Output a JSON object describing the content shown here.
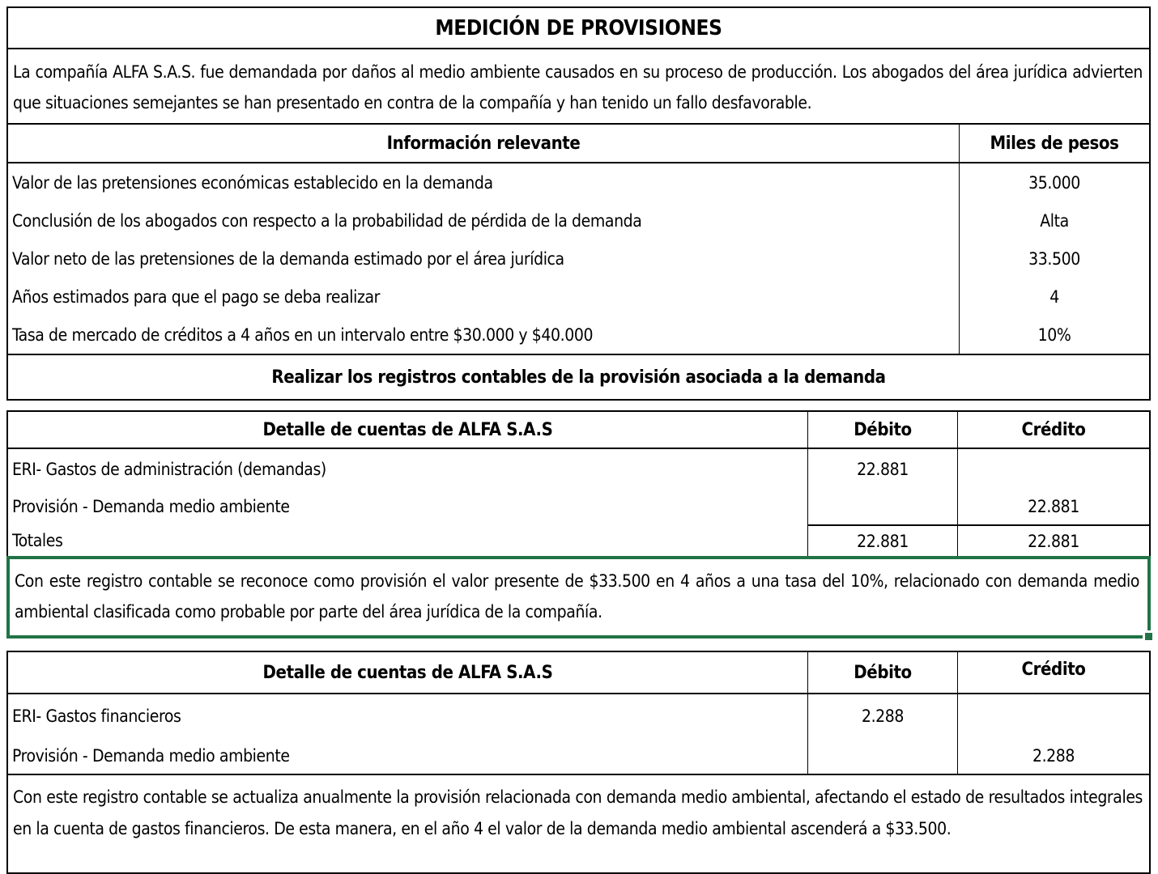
{
  "colors": {
    "selection_green": "#217346",
    "border_black": "#000000",
    "background": "#ffffff"
  },
  "case": {
    "title": "MEDICIÓN DE PROVISIONES",
    "intro": "La compañía ALFA S.A.S. fue demandada por daños al medio ambiente causados en su proceso de producción. Los abogados del área jurídica advierten que situaciones semejantes se han presentado en contra de la compañía y han tenido un fallo desfavorable."
  },
  "info_table": {
    "header_label": "Información relevante",
    "header_unit": "Miles de pesos",
    "rows": [
      {
        "label": "Valor de las pretensiones económicas establecido en la demanda",
        "value": "35.000"
      },
      {
        "label": "Conclusión de los abogados con respecto a la probabilidad de pérdida de la demanda",
        "value": "Alta"
      },
      {
        "label": "Valor neto de las pretensiones de la demanda estimado por el área jurídica",
        "value": "33.500"
      },
      {
        "label": "Años estimados para que el pago se deba realizar",
        "value": "4"
      },
      {
        "label": "Tasa de mercado de créditos a 4 años en un intervalo entre $30.000 y $40.000",
        "value": "10%"
      }
    ],
    "task": "Realizar los registros contables de la provisión asociada a la demanda"
  },
  "journal1": {
    "header_detail": "Detalle de cuentas de ALFA S.A.S",
    "header_debit": "Débito",
    "header_credit": "Crédito",
    "rows": [
      {
        "label": "ERI- Gastos de administración (demandas)",
        "debit": "22.881",
        "credit": ""
      },
      {
        "label": "Provisión - Demanda medio ambiente",
        "debit": "",
        "credit": "22.881"
      }
    ],
    "totals": {
      "label": "Totales",
      "debit": "22.881",
      "credit": "22.881"
    },
    "note": "Con este registro contable se reconoce como provisión el valor presente de $33.500 en 4 años a una tasa del 10%, relacionado con demanda medio ambiental clasificada como probable por parte del área jurídica de la compañía."
  },
  "journal2": {
    "header_detail": "Detalle de cuentas de ALFA S.A.S",
    "header_debit": "Débito",
    "header_credit": "Crédito",
    "rows": [
      {
        "label": "ERI- Gastos financieros",
        "debit": "2.288",
        "credit": ""
      },
      {
        "label": "Provisión - Demanda medio ambiente",
        "debit": "",
        "credit": "2.288"
      }
    ],
    "note": "Con este registro contable se actualiza anualmente la provisión relacionada con demanda medio ambiental, afectando el estado de resultados integrales en la cuenta de gastos financieros. De esta manera, en el año 4 el valor de la demanda medio ambiental ascenderá a $33.500."
  }
}
